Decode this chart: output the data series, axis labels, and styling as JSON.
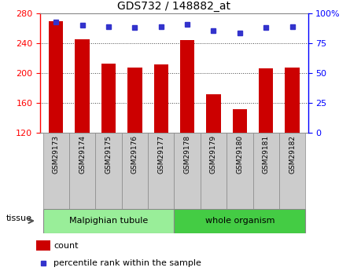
{
  "title": "GDS732 / 148882_at",
  "samples": [
    "GSM29173",
    "GSM29174",
    "GSM29175",
    "GSM29176",
    "GSM29177",
    "GSM29178",
    "GSM29179",
    "GSM29180",
    "GSM29181",
    "GSM29182"
  ],
  "counts": [
    270,
    246,
    213,
    208,
    212,
    244,
    172,
    152,
    207,
    208
  ],
  "percentiles": [
    93,
    90,
    89,
    88,
    89,
    91,
    86,
    84,
    88,
    89
  ],
  "ylim_left": [
    120,
    280
  ],
  "ylim_right": [
    0,
    100
  ],
  "yticks_left": [
    120,
    160,
    200,
    240,
    280
  ],
  "yticks_right": [
    0,
    25,
    50,
    75,
    100
  ],
  "yticklabels_right": [
    "0",
    "25",
    "50",
    "75",
    "100%"
  ],
  "bar_color": "#cc0000",
  "dot_color": "#3333cc",
  "tissue_groups": [
    {
      "label": "Malpighian tubule",
      "indices": [
        0,
        1,
        2,
        3,
        4
      ],
      "color": "#99ee99"
    },
    {
      "label": "whole organism",
      "indices": [
        5,
        6,
        7,
        8,
        9
      ],
      "color": "#44cc44"
    }
  ],
  "sample_box_color": "#cccccc",
  "sample_box_edge": "#888888"
}
